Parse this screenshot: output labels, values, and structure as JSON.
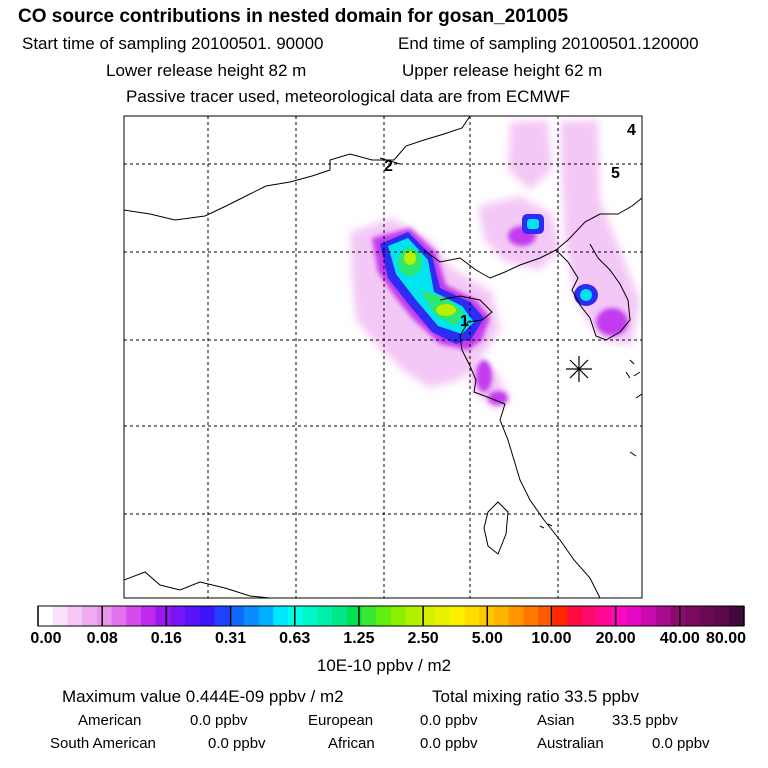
{
  "header": {
    "title": "CO  source contributions in nested domain for gosan_201005",
    "start_sampling": "Start time of sampling 20100501. 90000",
    "end_sampling": "End time of sampling 20100501.120000",
    "lower_release": "Lower release height   82 m",
    "upper_release": "Upper release height   62 m",
    "tracer_note": "Passive tracer used, meteorological data are from ECMWF"
  },
  "map": {
    "region_labels": [
      "1",
      "2",
      "4",
      "5"
    ],
    "receptor_symbol": "✳"
  },
  "colorbar": {
    "tick_labels": [
      "0.00",
      "0.08",
      "0.16",
      "0.31",
      "0.63",
      "1.25",
      "2.50",
      "5.00",
      "10.00",
      "20.00",
      "40.00",
      "80.00"
    ],
    "colors": [
      "#ffffff",
      "#fbe4fb",
      "#f6c8f6",
      "#f1acf1",
      "#e896ee",
      "#e072ee",
      "#d54cee",
      "#c02aee",
      "#9a18f0",
      "#7a14f4",
      "#5a14f8",
      "#3c14fc",
      "#1f40ff",
      "#1068ff",
      "#0a8cff",
      "#00b0ff",
      "#00e8ff",
      "#00ffe8",
      "#00f8c8",
      "#00f0a8",
      "#00e88a",
      "#00e050",
      "#38e830",
      "#60f010",
      "#8cf000",
      "#b0f000",
      "#d4f000",
      "#e8f000",
      "#fff000",
      "#ffdc00",
      "#ffc800",
      "#ffb400",
      "#ff9600",
      "#ff7800",
      "#ff5a00",
      "#ff2800",
      "#ff0a3c",
      "#ff0a6e",
      "#ff0a96",
      "#ff0abe",
      "#e60ac8",
      "#c80aaa",
      "#aa0a8c",
      "#8c0a6e",
      "#7a0a60",
      "#6a0a54",
      "#5a0a48",
      "#40083c"
    ],
    "units": "10E-10 ppbv / m2"
  },
  "summary": {
    "maximum": "Maximum value  0.444E-09 ppbv / m2",
    "total": "Total mixing ratio       33.5 ppbv",
    "american_label": "American",
    "american_value": "0.0 ppbv",
    "european_label": "European",
    "european_value": "0.0 ppbv",
    "asian_label": "Asian",
    "asian_value": "33.5 ppbv",
    "south_american_label": "South American",
    "south_american_value": "0.0 ppbv",
    "african_label": "African",
    "african_value": "0.0 ppbv",
    "australian_label": "Australian",
    "australian_value": "0.0 ppbv"
  }
}
